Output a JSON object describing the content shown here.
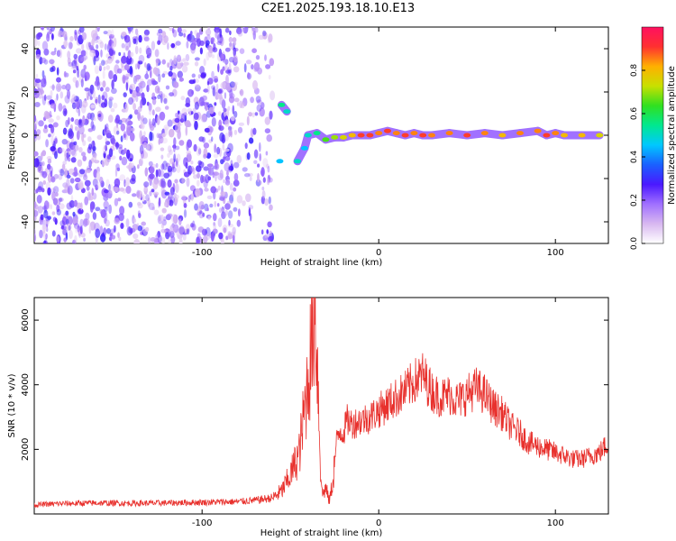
{
  "title": "C2E1.2025.193.18.10.E13",
  "colors": {
    "snr_line": "#e8312d",
    "scatter_noise": "#8a2be2",
    "colorbar": [
      "#ffffff",
      "#d8b8f0",
      "#a070ff",
      "#4a18ff",
      "#1a60ff",
      "#00c8ff",
      "#00e890",
      "#30e020",
      "#c8e000",
      "#ffb000",
      "#ff3030",
      "#ff1060"
    ]
  },
  "chart_data": [
    {
      "type": "heatmap",
      "name": "spectrogram",
      "xlabel": "Height of straight line (km)",
      "ylabel": "Frequency (Hz)",
      "xlim": [
        -195,
        130
      ],
      "ylim": [
        -50,
        50
      ],
      "xticks": [
        -100,
        0,
        100
      ],
      "xtick_labels": [
        "-100",
        "0",
        "100"
      ],
      "yticks": [
        -40,
        -20,
        0,
        20,
        40
      ],
      "ytick_labels": [
        "-40",
        "-20",
        "0",
        "20",
        "40"
      ],
      "colorbar": {
        "label": "Normalized spectral amplitude",
        "range": [
          0,
          1
        ],
        "ticks": [
          0.0,
          0.2,
          0.4,
          0.6,
          0.8
        ],
        "tick_labels": [
          "0.0",
          "0.2",
          "0.4",
          "0.6",
          "0.8"
        ]
      },
      "noise_region": {
        "x_from": -195,
        "x_to": -60,
        "amplitude": [
          0.05,
          0.3
        ],
        "freq_range": [
          -50,
          50
        ]
      },
      "ridge_points": [
        {
          "x": -55,
          "y": 14,
          "v": 0.55
        },
        {
          "x": -52,
          "y": 11,
          "v": 0.5
        },
        {
          "x": -56,
          "y": -12,
          "v": 0.45
        },
        {
          "x": -46,
          "y": -12,
          "v": 0.5
        },
        {
          "x": -42,
          "y": -6,
          "v": 0.45
        },
        {
          "x": -40,
          "y": 0,
          "v": 0.5
        },
        {
          "x": -35,
          "y": 1,
          "v": 0.55
        },
        {
          "x": -30,
          "y": -2,
          "v": 0.65
        },
        {
          "x": -25,
          "y": -1,
          "v": 0.7
        },
        {
          "x": -20,
          "y": -1,
          "v": 0.75
        },
        {
          "x": -15,
          "y": 0,
          "v": 0.8
        },
        {
          "x": -10,
          "y": 0,
          "v": 0.9
        },
        {
          "x": -5,
          "y": 0,
          "v": 0.9
        },
        {
          "x": 0,
          "y": 1,
          "v": 0.85
        },
        {
          "x": 5,
          "y": 2,
          "v": 0.9
        },
        {
          "x": 10,
          "y": 1,
          "v": 0.85
        },
        {
          "x": 15,
          "y": 0,
          "v": 0.9
        },
        {
          "x": 20,
          "y": 1,
          "v": 0.85
        },
        {
          "x": 25,
          "y": 0,
          "v": 0.9
        },
        {
          "x": 30,
          "y": 0,
          "v": 0.85
        },
        {
          "x": 40,
          "y": 1,
          "v": 0.85
        },
        {
          "x": 50,
          "y": 0,
          "v": 0.9
        },
        {
          "x": 60,
          "y": 1,
          "v": 0.85
        },
        {
          "x": 70,
          "y": 0,
          "v": 0.8
        },
        {
          "x": 80,
          "y": 1,
          "v": 0.85
        },
        {
          "x": 90,
          "y": 2,
          "v": 0.85
        },
        {
          "x": 95,
          "y": 0,
          "v": 0.9
        },
        {
          "x": 100,
          "y": 1,
          "v": 0.85
        },
        {
          "x": 105,
          "y": 0,
          "v": 0.8
        },
        {
          "x": 115,
          "y": 0,
          "v": 0.8
        },
        {
          "x": 125,
          "y": 0,
          "v": 0.75
        }
      ]
    },
    {
      "type": "line",
      "name": "snr",
      "xlabel": "Height of straight line (km)",
      "ylabel": "SNR (10 * v/v)",
      "xlim": [
        -195,
        130
      ],
      "ylim": [
        0,
        6700
      ],
      "xticks": [
        -100,
        0,
        100
      ],
      "xtick_labels": [
        "-100",
        "0",
        "100"
      ],
      "yticks": [
        2000,
        4000,
        6000
      ],
      "ytick_labels": [
        "2000",
        "4000",
        "6000"
      ],
      "series": [
        {
          "x": [
            -195,
            -180,
            -160,
            -140,
            -120,
            -100,
            -80,
            -70,
            -60,
            -55,
            -50,
            -45,
            -42,
            -40,
            -38,
            -36,
            -35,
            -34,
            -33,
            -32,
            -30,
            -28,
            -26,
            -24,
            -22,
            -20,
            -18,
            -15,
            -10,
            -5,
            0,
            5,
            10,
            15,
            20,
            25,
            30,
            35,
            40,
            45,
            50,
            55,
            60,
            65,
            70,
            75,
            80,
            85,
            90,
            95,
            100,
            105,
            110,
            115,
            120,
            125,
            130
          ],
          "y": [
            280,
            320,
            340,
            330,
            340,
            360,
            380,
            420,
            500,
            700,
            1200,
            1900,
            3200,
            4200,
            5200,
            6600,
            5000,
            3400,
            1500,
            600,
            800,
            400,
            1000,
            2200,
            2600,
            2500,
            2900,
            2800,
            2900,
            3000,
            3200,
            3400,
            3600,
            3800,
            4100,
            4300,
            3800,
            3600,
            3700,
            3500,
            3700,
            3900,
            3700,
            3300,
            3100,
            2700,
            2500,
            2200,
            2100,
            2000,
            1900,
            1800,
            1700,
            1700,
            1800,
            1900,
            2200
          ]
        }
      ]
    }
  ]
}
